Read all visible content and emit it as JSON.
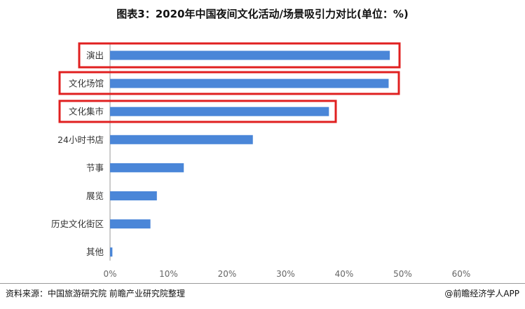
{
  "title": "图表3：2020年中国夜间文化活动/场景吸引力对比(单位：%)",
  "source": "资料来源：中国旅游研究院 前瞻产业研究院整理",
  "brand": "@前瞻经济学人APP",
  "colors": {
    "bar": "#4a86d8",
    "highlight": "#e02020",
    "axis": "#999999",
    "text": "#333333"
  },
  "chart_data": {
    "type": "bar",
    "orientation": "horizontal",
    "categories": [
      "演出",
      "文化场馆",
      "文化集市",
      "24小时书店",
      "节事",
      "展览",
      "历史文化街区",
      "其他"
    ],
    "values": [
      47.8,
      47.6,
      37.4,
      24.4,
      12.6,
      8.0,
      6.9,
      0.4
    ],
    "highlighted": [
      "演出",
      "文化场馆",
      "文化集市"
    ],
    "xlim": [
      0,
      60
    ],
    "ticks": [
      "0%",
      "10%",
      "20%",
      "30%",
      "40%",
      "50%",
      "60%"
    ],
    "grid": false
  }
}
